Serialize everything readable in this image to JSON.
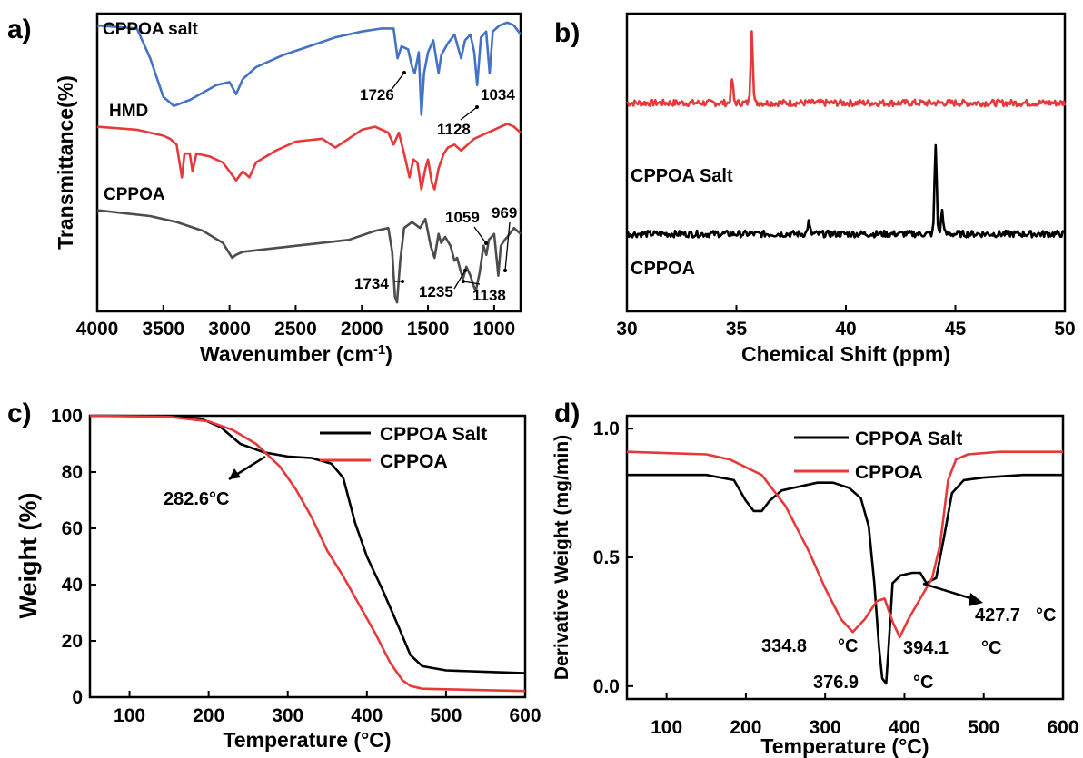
{
  "colors": {
    "blue": "#4472c4",
    "red": "#e8393a",
    "gray": "#4d4d4d",
    "black": "#000000"
  },
  "chart_data": [
    {
      "panel": "a)",
      "type": "line",
      "xlabel": "Wavenumber (cm⁻¹)",
      "ylabel": "Transmittance(%)",
      "xlim": [
        4000,
        800
      ],
      "xticks": [
        "4000",
        "3500",
        "3000",
        "2500",
        "2000",
        "1500",
        "1000"
      ],
      "series": [
        {
          "name": "CPPOA salt",
          "points": [
            [
              4000,
              0.96
            ],
            [
              3700,
              0.95
            ],
            [
              3600,
              0.85
            ],
            [
              3500,
              0.72
            ],
            [
              3420,
              0.69
            ],
            [
              3300,
              0.71
            ],
            [
              3100,
              0.76
            ],
            [
              3000,
              0.77
            ],
            [
              2950,
              0.73
            ],
            [
              2900,
              0.78
            ],
            [
              2800,
              0.82
            ],
            [
              2600,
              0.86
            ],
            [
              2400,
              0.89
            ],
            [
              2200,
              0.92
            ],
            [
              2000,
              0.94
            ],
            [
              1850,
              0.95
            ],
            [
              1760,
              0.95
            ],
            [
              1730,
              0.85
            ],
            [
              1700,
              0.89
            ],
            [
              1650,
              0.88
            ],
            [
              1620,
              0.82
            ],
            [
              1600,
              0.8
            ],
            [
              1570,
              0.87
            ],
            [
              1550,
              0.66
            ],
            [
              1530,
              0.8
            ],
            [
              1500,
              0.87
            ],
            [
              1460,
              0.91
            ],
            [
              1420,
              0.8
            ],
            [
              1400,
              0.86
            ],
            [
              1350,
              0.9
            ],
            [
              1300,
              0.93
            ],
            [
              1250,
              0.85
            ],
            [
              1220,
              0.91
            ],
            [
              1180,
              0.93
            ],
            [
              1150,
              0.87
            ],
            [
              1128,
              0.76
            ],
            [
              1100,
              0.92
            ],
            [
              1060,
              0.94
            ],
            [
              1034,
              0.8
            ],
            [
              1010,
              0.94
            ],
            [
              960,
              0.96
            ],
            [
              900,
              0.97
            ],
            [
              850,
              0.96
            ],
            [
              800,
              0.93
            ]
          ]
        },
        {
          "name": "HMD",
          "points": [
            [
              4000,
              0.62
            ],
            [
              3700,
              0.61
            ],
            [
              3500,
              0.59
            ],
            [
              3450,
              0.58
            ],
            [
              3400,
              0.56
            ],
            [
              3360,
              0.45
            ],
            [
              3340,
              0.53
            ],
            [
              3300,
              0.53
            ],
            [
              3280,
              0.47
            ],
            [
              3250,
              0.53
            ],
            [
              3150,
              0.52
            ],
            [
              3050,
              0.5
            ],
            [
              2950,
              0.44
            ],
            [
              2900,
              0.47
            ],
            [
              2850,
              0.45
            ],
            [
              2800,
              0.5
            ],
            [
              2650,
              0.54
            ],
            [
              2500,
              0.57
            ],
            [
              2300,
              0.58
            ],
            [
              2200,
              0.55
            ],
            [
              2100,
              0.58
            ],
            [
              2000,
              0.61
            ],
            [
              1900,
              0.62
            ],
            [
              1800,
              0.6
            ],
            [
              1760,
              0.56
            ],
            [
              1720,
              0.6
            ],
            [
              1680,
              0.53
            ],
            [
              1640,
              0.45
            ],
            [
              1610,
              0.51
            ],
            [
              1580,
              0.5
            ],
            [
              1550,
              0.41
            ],
            [
              1520,
              0.48
            ],
            [
              1500,
              0.51
            ],
            [
              1470,
              0.43
            ],
            [
              1450,
              0.41
            ],
            [
              1420,
              0.48
            ],
            [
              1380,
              0.53
            ],
            [
              1350,
              0.55
            ],
            [
              1300,
              0.56
            ],
            [
              1250,
              0.54
            ],
            [
              1200,
              0.56
            ],
            [
              1150,
              0.58
            ],
            [
              1100,
              0.59
            ],
            [
              1050,
              0.6
            ],
            [
              1000,
              0.61
            ],
            [
              950,
              0.62
            ],
            [
              900,
              0.63
            ],
            [
              850,
              0.62
            ],
            [
              800,
              0.6
            ]
          ]
        },
        {
          "name": "CPPOA",
          "points": [
            [
              4000,
              0.34
            ],
            [
              3800,
              0.33
            ],
            [
              3600,
              0.32
            ],
            [
              3400,
              0.3
            ],
            [
              3200,
              0.27
            ],
            [
              3050,
              0.23
            ],
            [
              2980,
              0.18
            ],
            [
              2950,
              0.19
            ],
            [
              2900,
              0.2
            ],
            [
              2700,
              0.21
            ],
            [
              2500,
              0.22
            ],
            [
              2300,
              0.23
            ],
            [
              2100,
              0.24
            ],
            [
              1900,
              0.27
            ],
            [
              1800,
              0.28
            ],
            [
              1770,
              0.2
            ],
            [
              1750,
              0.05
            ],
            [
              1734,
              0.03
            ],
            [
              1710,
              0.17
            ],
            [
              1680,
              0.28
            ],
            [
              1620,
              0.3
            ],
            [
              1560,
              0.28
            ],
            [
              1520,
              0.31
            ],
            [
              1480,
              0.22
            ],
            [
              1450,
              0.18
            ],
            [
              1420,
              0.26
            ],
            [
              1400,
              0.23
            ],
            [
              1370,
              0.25
            ],
            [
              1330,
              0.22
            ],
            [
              1300,
              0.17
            ],
            [
              1280,
              0.18
            ],
            [
              1250,
              0.13
            ],
            [
              1235,
              0.11
            ],
            [
              1210,
              0.15
            ],
            [
              1180,
              0.12
            ],
            [
              1150,
              0.08
            ],
            [
              1138,
              0.07
            ],
            [
              1110,
              0.13
            ],
            [
              1080,
              0.22
            ],
            [
              1059,
              0.19
            ],
            [
              1040,
              0.24
            ],
            [
              1000,
              0.26
            ],
            [
              975,
              0.15
            ],
            [
              969,
              0.12
            ],
            [
              950,
              0.22
            ],
            [
              920,
              0.24
            ],
            [
              900,
              0.25
            ],
            [
              850,
              0.28
            ],
            [
              800,
              0.26
            ]
          ]
        }
      ],
      "annotations": [
        "1726",
        "1128",
        "1034",
        "1059",
        "969",
        "1734",
        "1235",
        "1138"
      ]
    },
    {
      "panel": "b)",
      "type": "line",
      "xlabel": "Chemical Shift (ppm)",
      "xlim": [
        30,
        50
      ],
      "xticks": [
        "30",
        "35",
        "40",
        "45",
        "50"
      ],
      "series": [
        {
          "name": "CPPOA Salt",
          "baseline": 0.7,
          "peaks": [
            [
              34.8,
              0.08
            ],
            [
              35.7,
              0.25
            ]
          ]
        },
        {
          "name": "CPPOA",
          "baseline": 0.26,
          "peaks": [
            [
              38.3,
              0.04
            ],
            [
              44.1,
              0.3
            ],
            [
              44.4,
              0.08
            ]
          ]
        }
      ]
    },
    {
      "panel": "c)",
      "type": "line",
      "xlabel": "Temperature (°C)",
      "ylabel": "Weight (%)",
      "xlim": [
        50,
        600
      ],
      "ylim": [
        0,
        100
      ],
      "xticks": [
        "100",
        "200",
        "300",
        "400",
        "500",
        "600"
      ],
      "yticks": [
        "0",
        "20",
        "40",
        "60",
        "80",
        "100"
      ],
      "legend": "top-right",
      "series": [
        {
          "name": "CPPOA Salt",
          "points": [
            [
              50,
              100
            ],
            [
              150,
              99.8
            ],
            [
              190,
              99
            ],
            [
              215,
              96
            ],
            [
              240,
              90
            ],
            [
              270,
              87
            ],
            [
              300,
              85.5
            ],
            [
              330,
              85
            ],
            [
              355,
              83
            ],
            [
              370,
              78
            ],
            [
              385,
              62
            ],
            [
              400,
              50
            ],
            [
              420,
              38
            ],
            [
              440,
              25
            ],
            [
              455,
              15
            ],
            [
              470,
              11
            ],
            [
              500,
              9.5
            ],
            [
              550,
              9
            ],
            [
              600,
              8.5
            ]
          ]
        },
        {
          "name": "CPPOA",
          "points": [
            [
              50,
              100
            ],
            [
              150,
              99.6
            ],
            [
              200,
              98
            ],
            [
              230,
              95
            ],
            [
              260,
              90
            ],
            [
              290,
              82
            ],
            [
              310,
              74
            ],
            [
              330,
              64
            ],
            [
              350,
              52
            ],
            [
              370,
              43
            ],
            [
              390,
              33
            ],
            [
              410,
              23
            ],
            [
              430,
              12
            ],
            [
              445,
              6
            ],
            [
              455,
              4
            ],
            [
              470,
              3
            ],
            [
              500,
              2.8
            ],
            [
              550,
              2.5
            ],
            [
              600,
              2.2
            ]
          ]
        }
      ],
      "annotations": [
        "282.6°C"
      ]
    },
    {
      "panel": "d)",
      "type": "line",
      "xlabel": "Temperature (°C)",
      "ylabel": "Derivative Weight (mg/min)",
      "xlim": [
        50,
        600
      ],
      "ylim": [
        -0.05,
        1.05
      ],
      "xticks": [
        "100",
        "200",
        "300",
        "400",
        "500",
        "600"
      ],
      "yticks": [
        "0.0",
        "0.5",
        "1.0"
      ],
      "legend": "top-right",
      "series": [
        {
          "name": "CPPOA Salt",
          "points": [
            [
              50,
              0.82
            ],
            [
              150,
              0.82
            ],
            [
              185,
              0.8
            ],
            [
              200,
              0.72
            ],
            [
              210,
              0.68
            ],
            [
              220,
              0.68
            ],
            [
              230,
              0.72
            ],
            [
              245,
              0.76
            ],
            [
              260,
              0.77
            ],
            [
              290,
              0.79
            ],
            [
              310,
              0.79
            ],
            [
              330,
              0.77
            ],
            [
              345,
              0.73
            ],
            [
              355,
              0.62
            ],
            [
              362,
              0.4
            ],
            [
              368,
              0.15
            ],
            [
              372,
              0.03
            ],
            [
              376.9,
              0.01
            ],
            [
              380,
              0.15
            ],
            [
              385,
              0.4
            ],
            [
              395,
              0.43
            ],
            [
              410,
              0.44
            ],
            [
              420,
              0.44
            ],
            [
              427.7,
              0.4
            ],
            [
              440,
              0.42
            ],
            [
              450,
              0.58
            ],
            [
              460,
              0.75
            ],
            [
              475,
              0.8
            ],
            [
              500,
              0.81
            ],
            [
              550,
              0.82
            ],
            [
              600,
              0.82
            ]
          ]
        },
        {
          "name": "CPPOA",
          "points": [
            [
              50,
              0.91
            ],
            [
              150,
              0.9
            ],
            [
              180,
              0.88
            ],
            [
              220,
              0.82
            ],
            [
              250,
              0.7
            ],
            [
              280,
              0.52
            ],
            [
              300,
              0.38
            ],
            [
              320,
              0.26
            ],
            [
              334.8,
              0.21
            ],
            [
              350,
              0.26
            ],
            [
              365,
              0.33
            ],
            [
              375,
              0.34
            ],
            [
              385,
              0.25
            ],
            [
              394.1,
              0.19
            ],
            [
              405,
              0.26
            ],
            [
              420,
              0.34
            ],
            [
              435,
              0.42
            ],
            [
              445,
              0.55
            ],
            [
              455,
              0.8
            ],
            [
              465,
              0.88
            ],
            [
              480,
              0.9
            ],
            [
              520,
              0.91
            ],
            [
              600,
              0.91
            ]
          ]
        }
      ],
      "annotations": [
        "334.8",
        "376.9",
        "394.1",
        "427.7",
        "°C"
      ]
    }
  ]
}
